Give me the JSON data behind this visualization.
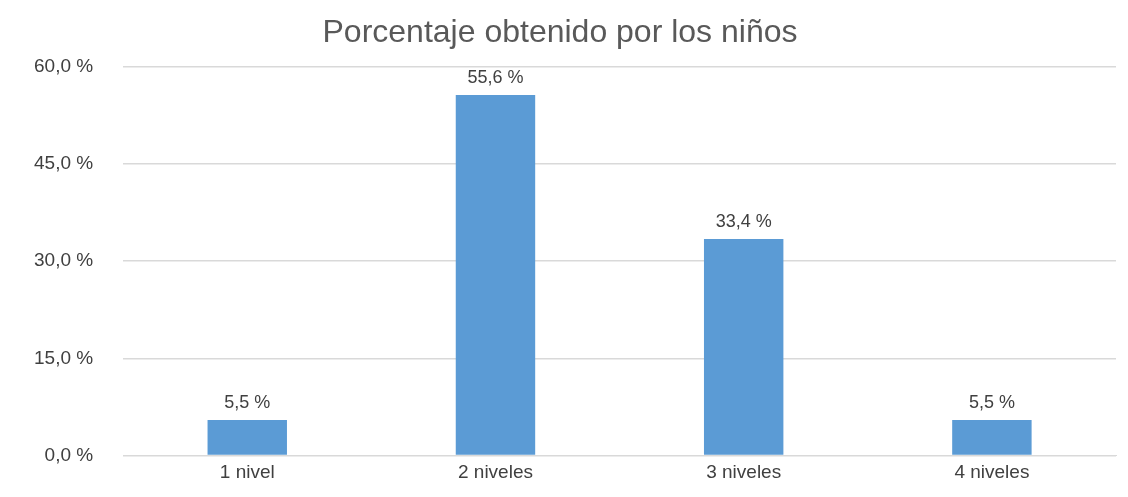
{
  "chart_data": {
    "type": "bar",
    "title": "Porcentaje obtenido por los niños",
    "categories": [
      "1 nivel",
      "2 niveles",
      "3 niveles",
      "4 niveles"
    ],
    "values": [
      5.5,
      55.6,
      33.4,
      5.5
    ],
    "value_labels": [
      "5,5 %",
      "55,6 %",
      "33,4 %",
      "5,5 %"
    ],
    "color": "#5b9bd5",
    "ylim": [
      0,
      60
    ],
    "yticks": [
      {
        "value": 0,
        "label": "0,0 %"
      },
      {
        "value": 15,
        "label": "15,0 %"
      },
      {
        "value": 30,
        "label": "30,0 %"
      },
      {
        "value": 45,
        "label": "45,0 %"
      },
      {
        "value": 60,
        "label": "60,0 %"
      }
    ],
    "grid": "y",
    "legend": false
  }
}
